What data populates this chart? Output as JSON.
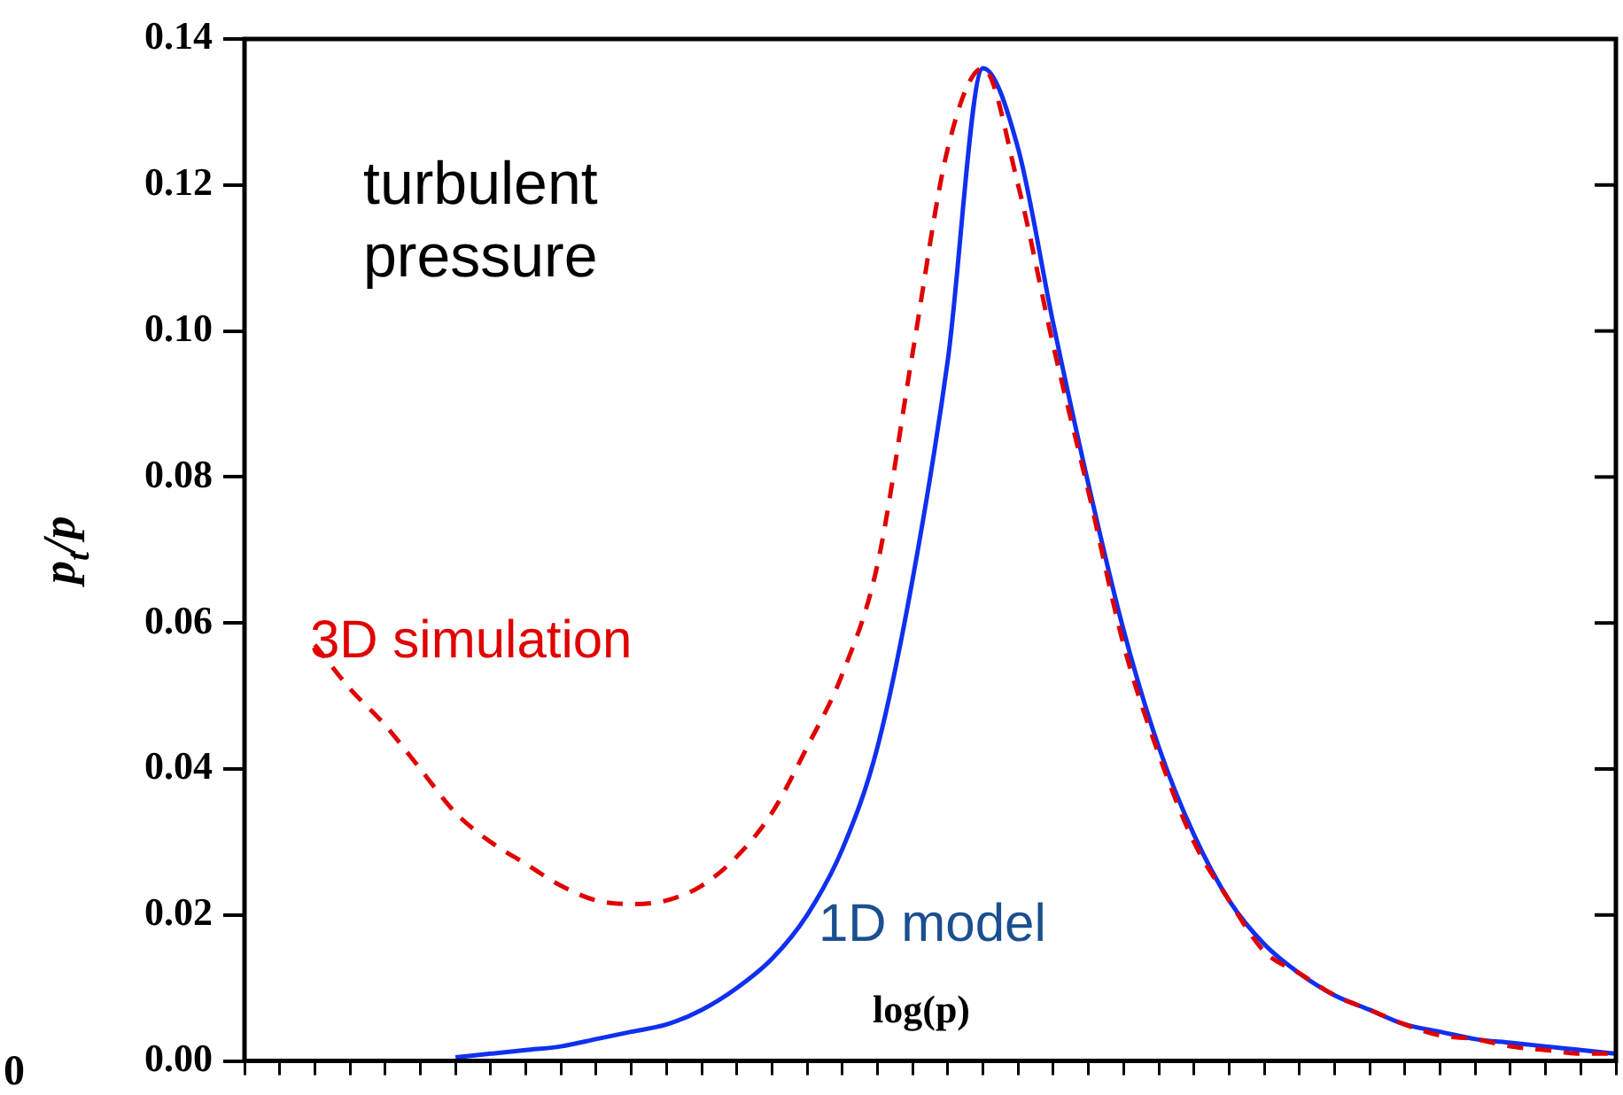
{
  "chart_data": {
    "type": "line",
    "xlabel": "log(p)",
    "ylabel": "p$_{t}$/p",
    "categories": [
      null,
      null,
      null,
      null,
      null,
      null,
      null,
      null,
      null,
      null,
      null,
      null,
      null,
      null,
      null,
      null,
      null,
      null,
      null,
      null,
      null,
      null,
      null,
      null,
      null,
      null,
      null,
      null,
      null,
      null,
      null,
      null,
      null,
      null,
      null,
      null,
      null,
      null,
      null,
      null
    ],
    "series": [
      {
        "name": "3D simulation",
        "color": "#e00000",
        "line_style": "dashed",
        "values": [
          null,
          null,
          0.057,
          0.051,
          0.046,
          0.04,
          0.034,
          0.03,
          0.027,
          0.024,
          0.022,
          0.0215,
          0.022,
          0.024,
          0.028,
          0.034,
          0.043,
          0.053,
          0.068,
          0.097,
          0.125,
          0.136,
          0.12,
          0.098,
          0.078,
          0.057,
          0.042,
          0.03,
          0.022,
          0.015,
          0.012,
          0.009,
          0.007,
          0.005,
          0.0035,
          0.003,
          0.002,
          0.0015,
          0.001,
          0.001
        ]
      },
      {
        "name": "1D model",
        "color": "#1030f0",
        "line_style": "solid",
        "values": [
          null,
          null,
          null,
          null,
          null,
          null,
          0.0005,
          0.001,
          0.0015,
          0.002,
          0.003,
          0.004,
          0.005,
          0.007,
          0.01,
          0.014,
          0.02,
          0.029,
          0.043,
          0.066,
          0.096,
          0.136,
          0.125,
          0.101,
          0.079,
          0.059,
          0.043,
          0.031,
          0.022,
          0.016,
          0.012,
          0.009,
          0.007,
          0.005,
          0.004,
          0.003,
          0.0025,
          0.002,
          0.0015,
          0.001
        ]
      }
    ],
    "ylim": [
      0,
      0.14
    ],
    "yticks": [
      {
        "value": 0,
        "label": "0.00"
      },
      {
        "value": 0.02,
        "label": "0.02"
      },
      {
        "value": 0.04,
        "label": "0.04"
      },
      {
        "value": 0.06,
        "label": "0.06"
      },
      {
        "value": 0.08,
        "label": "0.08"
      },
      {
        "value": 0.1,
        "label": "0.10"
      },
      {
        "value": 0.12,
        "label": "0.12"
      },
      {
        "value": 0.14,
        "label": "0.14"
      }
    ],
    "tick_labels": "y",
    "grid": false,
    "legend": false,
    "marker": "none",
    "annotations": [
      "turbulent pressure",
      "0"
    ]
  }
}
